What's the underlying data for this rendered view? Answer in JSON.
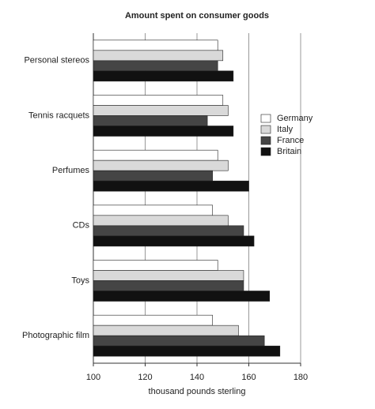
{
  "chart_data": {
    "type": "bar",
    "orientation": "horizontal",
    "title": "Amount spent on consumer goods",
    "xlabel": "thousand pounds sterling",
    "categories": [
      "Personal stereos",
      "Tennis racquets",
      "Perfumes",
      "CDs",
      "Toys",
      "Photographic film"
    ],
    "series": [
      {
        "name": "Germany",
        "color": "#ffffff",
        "values": [
          148,
          150,
          148,
          146,
          148,
          146
        ]
      },
      {
        "name": "Italy",
        "color": "#d9d9d9",
        "values": [
          150,
          152,
          152,
          152,
          158,
          156
        ]
      },
      {
        "name": "France",
        "color": "#454545",
        "values": [
          148,
          144,
          146,
          158,
          158,
          166
        ]
      },
      {
        "name": "Britain",
        "color": "#111111",
        "values": [
          154,
          154,
          160,
          162,
          168,
          172
        ]
      }
    ],
    "xlim": [
      100,
      180
    ],
    "xticks": [
      100,
      120,
      140,
      160,
      180
    ],
    "grid": true,
    "legend": "right"
  }
}
